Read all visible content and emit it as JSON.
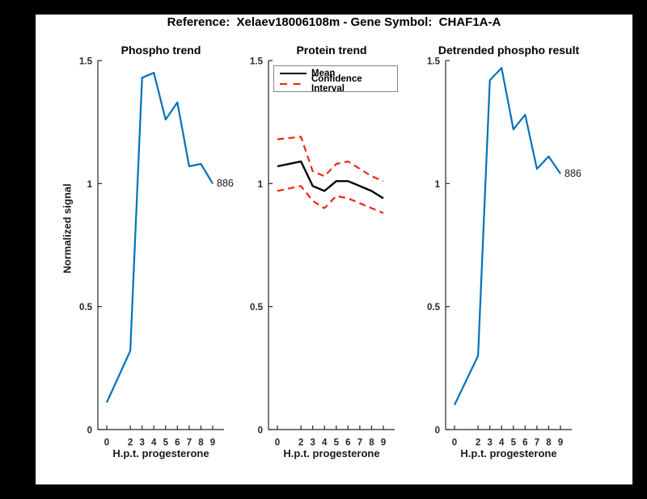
{
  "figure": {
    "title": "Reference:  Xelaev18006108m - Gene Symbol:  CHAF1A-A",
    "background": "#ffffff",
    "page_background": "#000000"
  },
  "colors": {
    "line_blue": "#0072BD",
    "ci_red": "#ef2512",
    "mean_black": "#000000",
    "axis": "#262626",
    "legend_border": "#838383"
  },
  "chart_data": [
    {
      "type": "line",
      "title": "Phospho trend",
      "xlabel": "H.p.t. progesterone",
      "ylabel": "Normalized signal",
      "x": [
        0,
        2,
        3,
        4,
        5,
        6,
        7,
        8,
        9
      ],
      "xticks": [
        0,
        2,
        3,
        4,
        5,
        6,
        7,
        8,
        9
      ],
      "yticks": [
        0,
        0.5,
        1,
        1.5
      ],
      "ylim": [
        0,
        1.5
      ],
      "xlim": [
        -0.75,
        10
      ],
      "grid": false,
      "series": [
        {
          "name": "phospho-trend-line",
          "color": "#0072BD",
          "style": "solid",
          "width": 2.2,
          "values": [
            0.11,
            0.32,
            1.43,
            1.45,
            1.26,
            1.33,
            1.07,
            1.08,
            1.0
          ]
        }
      ],
      "annotation": {
        "text": "886",
        "x": 9,
        "y": 1.0
      }
    },
    {
      "type": "line",
      "title": "Protein trend",
      "xlabel": "H.p.t. progesterone",
      "ylabel": "",
      "x": [
        0,
        2,
        3,
        4,
        5,
        6,
        7,
        8,
        9
      ],
      "xticks": [
        0,
        2,
        3,
        4,
        5,
        6,
        7,
        8,
        9
      ],
      "yticks": [
        0,
        0.5,
        1,
        1.5
      ],
      "ylim": [
        0,
        1.5
      ],
      "xlim": [
        -0.75,
        10
      ],
      "grid": false,
      "legend": {
        "position": "northeast",
        "entries": [
          {
            "label": "Mean",
            "color": "#000000",
            "style": "solid"
          },
          {
            "label": "Confidence Interval",
            "color": "#ef2512",
            "style": "dashed"
          }
        ]
      },
      "series": [
        {
          "name": "mean-line",
          "color": "#000000",
          "style": "solid",
          "width": 2.4,
          "values": [
            1.07,
            1.09,
            0.99,
            0.97,
            1.01,
            1.01,
            0.99,
            0.97,
            0.94
          ]
        },
        {
          "name": "confidence-interval-upper",
          "color": "#ef2512",
          "style": "dashed",
          "width": 2.2,
          "values": [
            1.18,
            1.19,
            1.05,
            1.03,
            1.08,
            1.09,
            1.06,
            1.03,
            1.01
          ]
        },
        {
          "name": "confidence-interval-lower",
          "color": "#ef2512",
          "style": "dashed",
          "width": 2.2,
          "values": [
            0.97,
            0.99,
            0.93,
            0.9,
            0.95,
            0.94,
            0.92,
            0.9,
            0.88
          ]
        }
      ]
    },
    {
      "type": "line",
      "title": "Detrended phospho result",
      "xlabel": "H.p.t. progesterone",
      "ylabel": "",
      "x": [
        0,
        2,
        3,
        4,
        5,
        6,
        7,
        8,
        9
      ],
      "xticks": [
        0,
        2,
        3,
        4,
        5,
        6,
        7,
        8,
        9
      ],
      "yticks": [
        0,
        0.5,
        1,
        1.5
      ],
      "ylim": [
        0,
        1.5
      ],
      "xlim": [
        -0.75,
        10
      ],
      "grid": false,
      "series": [
        {
          "name": "detrended-phospho-line",
          "color": "#0072BD",
          "style": "solid",
          "width": 2.2,
          "values": [
            0.1,
            0.3,
            1.42,
            1.47,
            1.22,
            1.28,
            1.06,
            1.11,
            1.04
          ]
        }
      ],
      "annotation": {
        "text": "886",
        "x": 9,
        "y": 1.04
      }
    }
  ]
}
